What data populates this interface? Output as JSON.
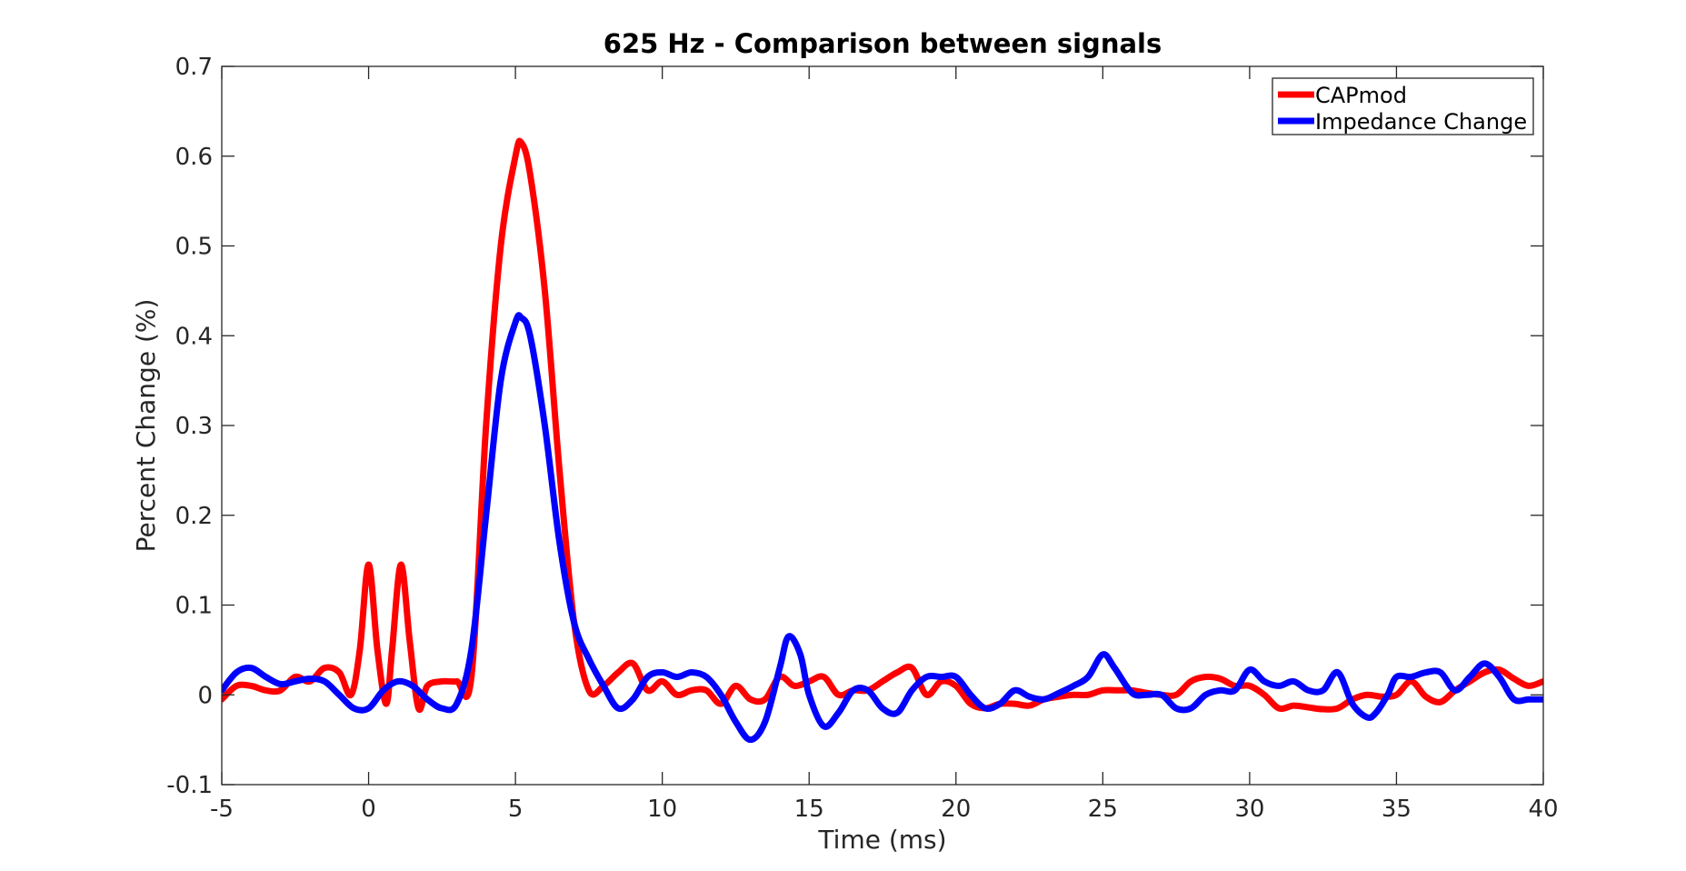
{
  "chart_data": {
    "type": "line",
    "title": "625 Hz - Comparison between signals",
    "xlabel": "Time (ms)",
    "ylabel": "Percent Change (%)",
    "xlim": [
      -5,
      40
    ],
    "ylim": [
      -0.1,
      0.7
    ],
    "xticks": [
      -5,
      0,
      5,
      10,
      15,
      20,
      25,
      30,
      35,
      40
    ],
    "xtick_labels": [
      "-5",
      "0",
      "5",
      "10",
      "15",
      "20",
      "25",
      "30",
      "35",
      "40"
    ],
    "yticks": [
      -0.1,
      0,
      0.1,
      0.2,
      0.3,
      0.4,
      0.5,
      0.6,
      0.7
    ],
    "ytick_labels": [
      "-0.1",
      "0",
      "0.1",
      "0.2",
      "0.3",
      "0.4",
      "0.5",
      "0.6",
      "0.7"
    ],
    "grid": false,
    "legend_position": "top-right",
    "series": [
      {
        "name": "CAPmod",
        "color": "#ff0000",
        "x": [
          -5,
          -4.5,
          -4,
          -3.5,
          -3,
          -2.5,
          -2,
          -1.5,
          -1,
          -0.6,
          -0.3,
          0,
          0.3,
          0.6,
          0.8,
          1.1,
          1.4,
          1.7,
          2,
          2.5,
          3,
          3.5,
          4,
          4.5,
          5,
          5.2,
          5.5,
          6,
          6.5,
          7,
          7.5,
          8,
          8.5,
          9,
          9.5,
          10,
          10.5,
          11,
          11.5,
          12,
          12.5,
          13,
          13.5,
          14,
          14.5,
          15,
          15.5,
          16,
          16.5,
          17,
          17.5,
          18,
          18.5,
          19,
          19.5,
          20,
          20.5,
          21,
          21.5,
          22,
          22.5,
          23,
          23.5,
          24,
          24.5,
          25,
          25.5,
          26,
          26.5,
          27,
          27.5,
          28,
          28.5,
          29,
          29.5,
          30,
          30.5,
          31,
          31.5,
          32,
          32.5,
          33,
          33.5,
          34,
          34.5,
          35,
          35.5,
          36,
          36.5,
          37,
          37.5,
          38,
          38.5,
          39,
          39.5,
          40
        ],
        "y": [
          -0.005,
          0.01,
          0.01,
          0.005,
          0.005,
          0.02,
          0.015,
          0.03,
          0.025,
          0.0,
          0.05,
          0.145,
          0.05,
          -0.01,
          0.05,
          0.145,
          0.06,
          -0.015,
          0.01,
          0.015,
          0.015,
          0.02,
          0.3,
          0.5,
          0.6,
          0.615,
          0.58,
          0.45,
          0.25,
          0.08,
          0.005,
          0.01,
          0.025,
          0.035,
          0.005,
          0.015,
          0.0,
          0.005,
          0.005,
          -0.01,
          0.01,
          -0.005,
          -0.005,
          0.02,
          0.01,
          0.015,
          0.02,
          0.0,
          0.005,
          0.005,
          0.015,
          0.025,
          0.03,
          0.0,
          0.015,
          0.01,
          -0.01,
          -0.015,
          -0.01,
          -0.01,
          -0.012,
          -0.005,
          -0.002,
          0.0,
          0.0,
          0.005,
          0.005,
          0.005,
          0.002,
          0.0,
          0.0,
          0.015,
          0.02,
          0.018,
          0.01,
          0.01,
          0.0,
          -0.015,
          -0.012,
          -0.014,
          -0.016,
          -0.015,
          -0.005,
          0.0,
          -0.002,
          0.0,
          0.015,
          -0.002,
          -0.008,
          0.005,
          0.015,
          0.025,
          0.028,
          0.018,
          0.01,
          0.015
        ]
      },
      {
        "name": "Impedance Change",
        "color": "#0000ff",
        "x": [
          -5,
          -4.5,
          -4,
          -3.5,
          -3,
          -2.5,
          -2,
          -1.5,
          -1,
          -0.5,
          0,
          0.5,
          1,
          1.5,
          2,
          2.5,
          3,
          3.5,
          4,
          4.5,
          5,
          5.2,
          5.5,
          6,
          6.5,
          7,
          7.5,
          8,
          8.5,
          9,
          9.5,
          10,
          10.5,
          11,
          11.5,
          12,
          12.5,
          13,
          13.5,
          14,
          14.3,
          14.7,
          15,
          15.5,
          16,
          16.5,
          17,
          17.5,
          18,
          18.5,
          19,
          19.5,
          20,
          20.5,
          21,
          21.5,
          22,
          22.5,
          23,
          23.5,
          24,
          24.5,
          25,
          25.4,
          26,
          26.5,
          27,
          27.5,
          28,
          28.5,
          29,
          29.5,
          30,
          30.5,
          31,
          31.5,
          32,
          32.5,
          33,
          33.5,
          34,
          34.3,
          34.7,
          35,
          35.5,
          36,
          36.5,
          37,
          37.5,
          38,
          38.5,
          39,
          39.5,
          40
        ],
        "y": [
          0.005,
          0.025,
          0.03,
          0.02,
          0.012,
          0.015,
          0.018,
          0.015,
          0.0,
          -0.015,
          -0.015,
          0.005,
          0.015,
          0.01,
          -0.005,
          -0.015,
          -0.01,
          0.05,
          0.2,
          0.35,
          0.415,
          0.42,
          0.4,
          0.3,
          0.17,
          0.08,
          0.04,
          0.01,
          -0.015,
          -0.005,
          0.02,
          0.025,
          0.02,
          0.025,
          0.02,
          0.0,
          -0.03,
          -0.05,
          -0.03,
          0.03,
          0.065,
          0.045,
          0.0,
          -0.035,
          -0.02,
          0.005,
          0.005,
          -0.015,
          -0.02,
          0.005,
          0.02,
          0.02,
          0.02,
          0.0,
          -0.015,
          -0.01,
          0.005,
          -0.002,
          -0.005,
          0.002,
          0.01,
          0.02,
          0.045,
          0.03,
          0.002,
          0.0,
          0.0,
          -0.015,
          -0.015,
          0.0,
          0.005,
          0.005,
          0.028,
          0.015,
          0.01,
          0.015,
          0.005,
          0.005,
          0.025,
          -0.01,
          -0.025,
          -0.02,
          0.0,
          0.02,
          0.02,
          0.025,
          0.025,
          0.005,
          0.02,
          0.035,
          0.02,
          -0.005,
          -0.005,
          -0.005
        ]
      }
    ]
  }
}
